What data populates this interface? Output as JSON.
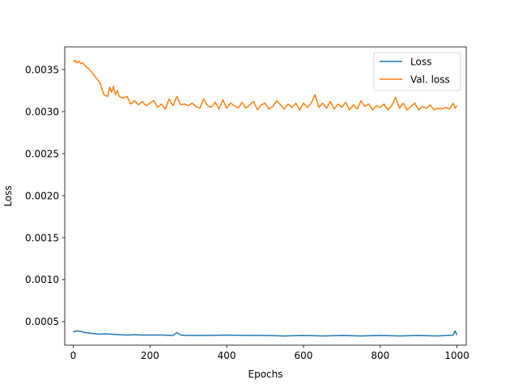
{
  "chart_data": {
    "type": "line",
    "title": "",
    "xlabel": "Epochs",
    "ylabel": "Loss",
    "xlim": [
      -22,
      1024
    ],
    "ylim": [
      0.00022,
      0.00377
    ],
    "xticks": [
      0,
      200,
      400,
      600,
      800,
      1000
    ],
    "xtick_labels": [
      "0",
      "200",
      "400",
      "600",
      "800",
      "1000"
    ],
    "yticks": [
      0.0005,
      0.001,
      0.0015,
      0.002,
      0.0025,
      0.003,
      0.0035
    ],
    "ytick_labels": [
      "0.0005",
      "0.0010",
      "0.0015",
      "0.0020",
      "0.0025",
      "0.0030",
      "0.0035"
    ],
    "grid": false,
    "legend_position": "top-right",
    "series": [
      {
        "name": "Loss",
        "color": "#1f77b4",
        "x": [
          0,
          10,
          20,
          30,
          40,
          50,
          60,
          70,
          80,
          100,
          120,
          140,
          160,
          180,
          200,
          230,
          260,
          270,
          280,
          300,
          350,
          400,
          450,
          500,
          550,
          600,
          650,
          700,
          750,
          800,
          850,
          900,
          950,
          990,
          995,
          1000
        ],
        "y": [
          0.00038,
          0.00039,
          0.000385,
          0.00037,
          0.000365,
          0.00036,
          0.000355,
          0.00035,
          0.000355,
          0.00035,
          0.000345,
          0.00034,
          0.000345,
          0.00034,
          0.00034,
          0.00034,
          0.000335,
          0.00037,
          0.00034,
          0.000335,
          0.000335,
          0.00034,
          0.000335,
          0.000335,
          0.00033,
          0.000335,
          0.00033,
          0.000335,
          0.00033,
          0.000335,
          0.00033,
          0.000335,
          0.00033,
          0.00034,
          0.00039,
          0.00034
        ]
      },
      {
        "name": "Val. loss",
        "color": "#ff7f0e",
        "x": [
          0,
          5,
          10,
          15,
          20,
          25,
          30,
          40,
          50,
          60,
          70,
          80,
          90,
          95,
          100,
          105,
          110,
          115,
          120,
          130,
          140,
          150,
          160,
          170,
          180,
          190,
          200,
          210,
          220,
          230,
          240,
          250,
          260,
          270,
          280,
          290,
          300,
          310,
          320,
          330,
          340,
          350,
          360,
          370,
          380,
          390,
          400,
          410,
          420,
          430,
          440,
          450,
          460,
          470,
          480,
          490,
          500,
          510,
          520,
          530,
          540,
          550,
          560,
          570,
          580,
          590,
          600,
          610,
          620,
          630,
          640,
          650,
          660,
          670,
          680,
          690,
          700,
          710,
          720,
          730,
          740,
          750,
          760,
          770,
          780,
          790,
          800,
          810,
          820,
          830,
          840,
          850,
          860,
          870,
          880,
          890,
          900,
          910,
          920,
          930,
          940,
          950,
          960,
          970,
          980,
          990,
          995,
          1000
        ],
        "y": [
          0.00359,
          0.00361,
          0.00358,
          0.0036,
          0.00357,
          0.00358,
          0.00355,
          0.00351,
          0.00346,
          0.0034,
          0.00334,
          0.0032,
          0.00318,
          0.00329,
          0.00323,
          0.0033,
          0.0032,
          0.00325,
          0.00318,
          0.00316,
          0.00318,
          0.00309,
          0.00313,
          0.00308,
          0.00312,
          0.00307,
          0.0031,
          0.00313,
          0.00305,
          0.00309,
          0.00303,
          0.00315,
          0.00307,
          0.00318,
          0.00308,
          0.00309,
          0.00307,
          0.0031,
          0.00306,
          0.00304,
          0.00315,
          0.00307,
          0.00305,
          0.00311,
          0.00303,
          0.00314,
          0.00304,
          0.0031,
          0.00307,
          0.00304,
          0.00311,
          0.00304,
          0.00308,
          0.00312,
          0.00302,
          0.00308,
          0.0031,
          0.00303,
          0.00306,
          0.00313,
          0.00308,
          0.00303,
          0.00309,
          0.00305,
          0.0031,
          0.00302,
          0.0031,
          0.00305,
          0.0031,
          0.0032,
          0.00305,
          0.0031,
          0.00304,
          0.00312,
          0.00303,
          0.00309,
          0.00305,
          0.00311,
          0.00302,
          0.00308,
          0.00303,
          0.00313,
          0.00306,
          0.00309,
          0.00302,
          0.00307,
          0.00305,
          0.00309,
          0.00302,
          0.00307,
          0.00317,
          0.00304,
          0.0031,
          0.00302,
          0.00306,
          0.0031,
          0.00302,
          0.00306,
          0.00304,
          0.00308,
          0.00302,
          0.00304,
          0.00303,
          0.00305,
          0.00303,
          0.0031,
          0.00304,
          0.00307
        ]
      }
    ]
  }
}
